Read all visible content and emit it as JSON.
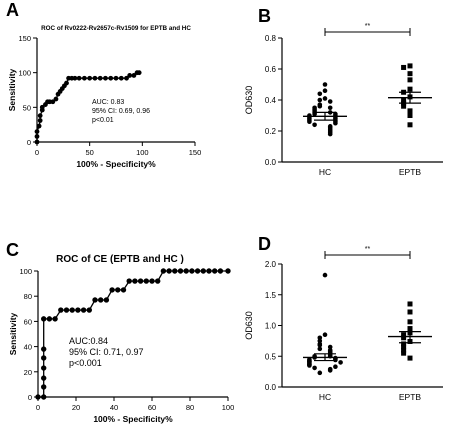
{
  "chart_data": [
    {
      "panel_label": "A",
      "type": "line",
      "title": "ROC of Rv0222-Rv2657c-Rv1509 for EPTB and HC",
      "xlabel": "100% - Specificity%",
      "ylabel": "Sensitivity",
      "xlim": [
        0,
        150
      ],
      "ylim": [
        0,
        150
      ],
      "xticks": [
        "0",
        "50",
        "100",
        "150"
      ],
      "yticks": [
        "0",
        "50",
        "100",
        "150"
      ],
      "annotation": [
        "AUC: 0.83",
        "95% CI: 0.69, 0.96",
        "p<0.01"
      ],
      "grid": false,
      "x": [
        0,
        0,
        0,
        2,
        3,
        3,
        5,
        5,
        8,
        10,
        12,
        15,
        18,
        20,
        22,
        24,
        26,
        28,
        30,
        33,
        36,
        40,
        45,
        50,
        55,
        60,
        65,
        70,
        75,
        80,
        85,
        88,
        92,
        95,
        97
      ],
      "y": [
        0,
        8,
        15,
        23,
        31,
        38,
        46,
        50,
        54,
        58,
        58,
        58,
        62,
        69,
        73,
        77,
        81,
        85,
        92,
        92,
        92,
        92,
        92,
        92,
        92,
        92,
        92,
        92,
        92,
        92,
        92,
        96,
        96,
        100,
        100
      ]
    },
    {
      "panel_label": "B",
      "type": "scatter",
      "title": "",
      "xlabel": "",
      "ylabel": "OD630",
      "ylim": [
        0,
        0.8
      ],
      "yticks": [
        "0.0",
        "0.2",
        "0.4",
        "0.6",
        "0.8"
      ],
      "categories": [
        "HC",
        "EPTB"
      ],
      "significance": "**",
      "series": [
        {
          "name": "HC",
          "marker": "circle",
          "mean": 0.295,
          "sem_low": 0.27,
          "sem_high": 0.32,
          "values": [
            0.5,
            0.46,
            0.44,
            0.41,
            0.4,
            0.39,
            0.37,
            0.36,
            0.35,
            0.35,
            0.34,
            0.33,
            0.32,
            0.32,
            0.31,
            0.31,
            0.3,
            0.3,
            0.29,
            0.29,
            0.28,
            0.28,
            0.27,
            0.27,
            0.26,
            0.26,
            0.25,
            0.24,
            0.23,
            0.22,
            0.21,
            0.2,
            0.19,
            0.18
          ]
        },
        {
          "name": "EPTB",
          "marker": "square",
          "mean": 0.415,
          "sem_low": 0.38,
          "sem_high": 0.45,
          "values": [
            0.62,
            0.61,
            0.57,
            0.53,
            0.47,
            0.45,
            0.42,
            0.4,
            0.38,
            0.36,
            0.33,
            0.3,
            0.24
          ]
        }
      ]
    },
    {
      "panel_label": "C",
      "type": "line",
      "title": "ROC of CE (EPTB and HC )",
      "xlabel": "100% - Specificity%",
      "ylabel": "Sensitivity",
      "xlim": [
        0,
        100
      ],
      "ylim": [
        0,
        100
      ],
      "xticks": [
        "0",
        "20",
        "40",
        "60",
        "80",
        "100"
      ],
      "yticks": [
        "0",
        "20",
        "40",
        "60",
        "80",
        "100"
      ],
      "annotation": [
        "AUC:0.84",
        "95% CI: 0.71, 0.97",
        "p<0.001"
      ],
      "grid": false,
      "x": [
        0,
        3,
        3,
        3,
        3,
        3,
        3,
        3,
        6,
        9,
        12,
        15,
        18,
        21,
        24,
        27,
        30,
        33,
        36,
        39,
        42,
        45,
        48,
        51,
        54,
        57,
        60,
        63,
        66,
        69,
        72,
        75,
        78,
        81,
        84,
        87,
        90,
        93,
        96,
        100
      ],
      "y": [
        0,
        0,
        8,
        15,
        23,
        31,
        38,
        62,
        62,
        62,
        69,
        69,
        69,
        69,
        69,
        69,
        77,
        77,
        77,
        85,
        85,
        85,
        92,
        92,
        92,
        92,
        92,
        92,
        100,
        100,
        100,
        100,
        100,
        100,
        100,
        100,
        100,
        100,
        100,
        100
      ]
    },
    {
      "panel_label": "D",
      "type": "scatter",
      "title": "",
      "xlabel": "",
      "ylabel": "OD630",
      "ylim": [
        0,
        2.0
      ],
      "yticks": [
        "0.0",
        "0.5",
        "1.0",
        "1.5",
        "2.0"
      ],
      "categories": [
        "HC",
        "EPTB"
      ],
      "significance": "**",
      "series": [
        {
          "name": "HC",
          "marker": "circle",
          "mean": 0.48,
          "sem_low": 0.43,
          "sem_high": 0.54,
          "values": [
            1.82,
            0.85,
            0.8,
            0.75,
            0.7,
            0.68,
            0.65,
            0.62,
            0.6,
            0.58,
            0.56,
            0.54,
            0.52,
            0.5,
            0.5,
            0.48,
            0.47,
            0.46,
            0.45,
            0.44,
            0.43,
            0.42,
            0.41,
            0.4,
            0.4,
            0.38,
            0.37,
            0.36,
            0.35,
            0.33,
            0.31,
            0.29,
            0.27,
            0.23
          ]
        },
        {
          "name": "EPTB",
          "marker": "square",
          "mean": 0.82,
          "sem_low": 0.72,
          "sem_high": 0.9,
          "values": [
            1.35,
            1.22,
            1.06,
            0.95,
            0.88,
            0.85,
            0.8,
            0.74,
            0.7,
            0.65,
            0.6,
            0.55,
            0.47
          ]
        }
      ]
    }
  ]
}
